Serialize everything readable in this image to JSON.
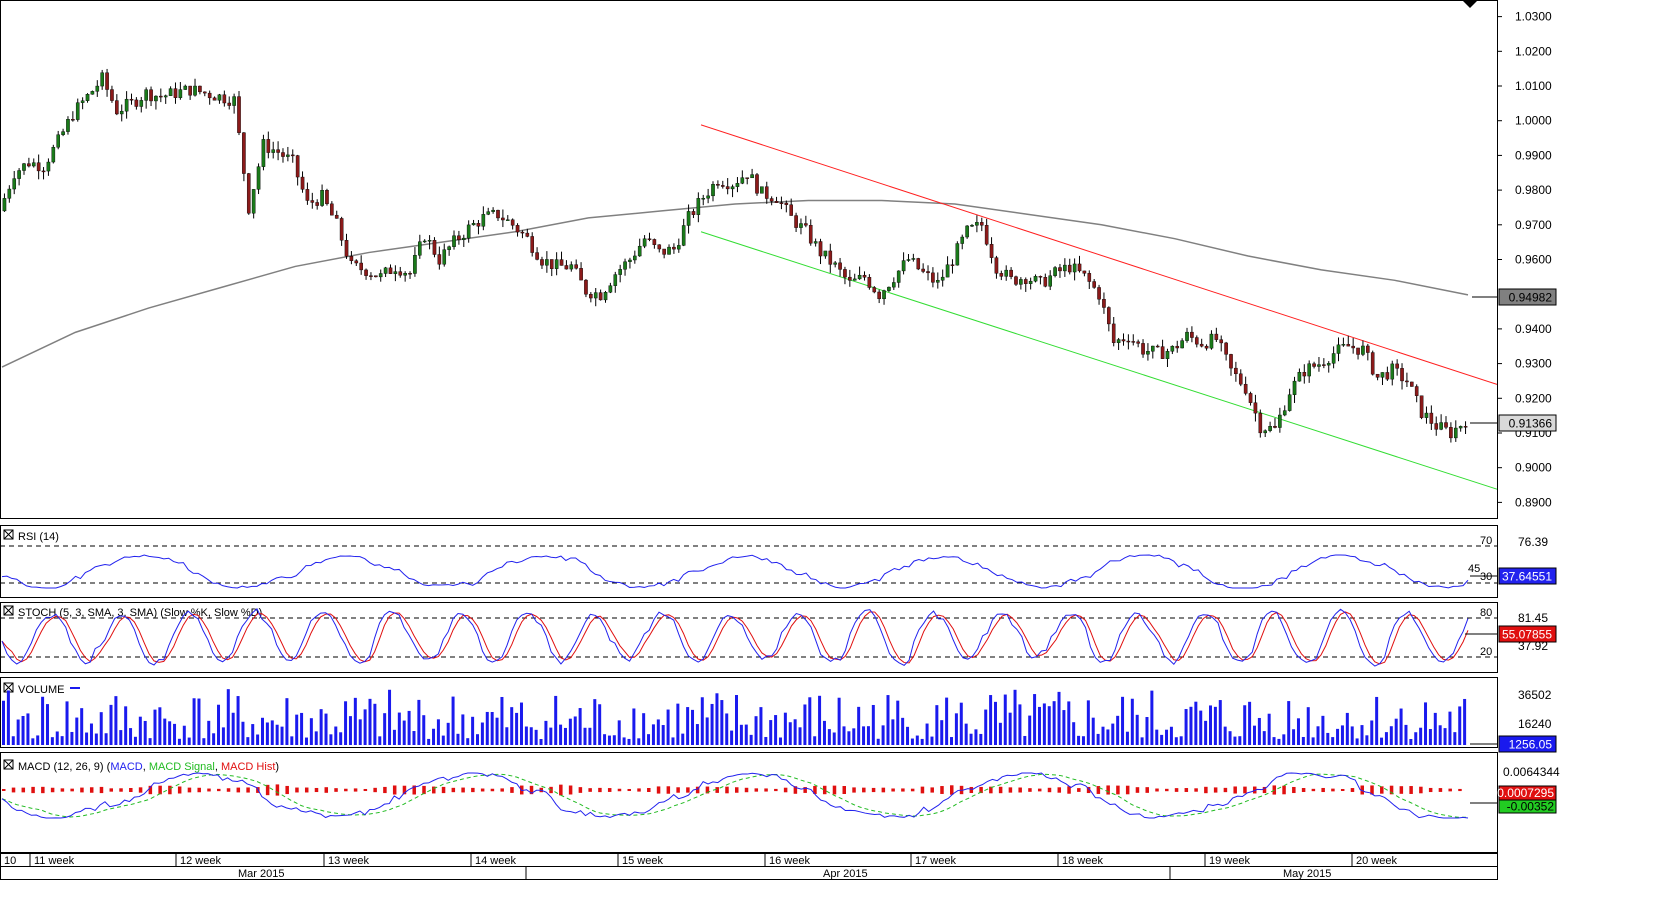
{
  "chart_data": [
    {
      "type": "candlestick",
      "panel": "price",
      "y_ticks": [
        "1.0300",
        "1.0200",
        "1.0100",
        "1.0000",
        "0.9900",
        "0.9800",
        "0.9700",
        "0.9600",
        "0.9400",
        "0.9300",
        "0.9200",
        "0.9100",
        "0.9000",
        "0.8900"
      ],
      "ylim": [
        0.8855,
        1.0345
      ],
      "current_price_label": "0.91366",
      "current_price": 0.91366,
      "sma_label": "0.94982",
      "sma_value": 0.94982,
      "sma_points": [
        [
          0,
          0.929
        ],
        [
          0.05,
          0.939
        ],
        [
          0.1,
          0.946
        ],
        [
          0.15,
          0.952
        ],
        [
          0.2,
          0.958
        ],
        [
          0.25,
          0.962
        ],
        [
          0.3,
          0.965
        ],
        [
          0.35,
          0.968
        ],
        [
          0.4,
          0.972
        ],
        [
          0.45,
          0.974
        ],
        [
          0.5,
          0.976
        ],
        [
          0.55,
          0.977
        ],
        [
          0.6,
          0.977
        ],
        [
          0.65,
          0.976
        ],
        [
          0.7,
          0.973
        ],
        [
          0.75,
          0.97
        ],
        [
          0.8,
          0.966
        ],
        [
          0.85,
          0.961
        ],
        [
          0.9,
          0.957
        ],
        [
          0.95,
          0.954
        ],
        [
          1.0,
          0.9498
        ]
      ],
      "resistance_line": [
        [
          0.47,
          0.9988
        ],
        [
          1.0,
          0.924
        ]
      ],
      "support_line": [
        [
          0.47,
          0.968
        ],
        [
          1.0,
          0.8938
        ]
      ],
      "price_path": [
        [
          0,
          0.974
        ],
        [
          0.01,
          0.985
        ],
        [
          0.02,
          0.988
        ],
        [
          0.03,
          0.987
        ],
        [
          0.04,
          0.994
        ],
        [
          0.05,
          1.002
        ],
        [
          0.06,
          1.007
        ],
        [
          0.07,
          1.012
        ],
        [
          0.08,
          1.003
        ],
        [
          0.09,
          1.005
        ],
        [
          0.1,
          1.008
        ],
        [
          0.11,
          1.007
        ],
        [
          0.12,
          1.008
        ],
        [
          0.13,
          1.009
        ],
        [
          0.14,
          1.008
        ],
        [
          0.15,
          1.007
        ],
        [
          0.16,
          1.006
        ],
        [
          0.17,
          0.975
        ],
        [
          0.18,
          0.993
        ],
        [
          0.19,
          0.991
        ],
        [
          0.2,
          0.988
        ],
        [
          0.21,
          0.976
        ],
        [
          0.22,
          0.978
        ],
        [
          0.23,
          0.97
        ],
        [
          0.24,
          0.958
        ],
        [
          0.25,
          0.957
        ],
        [
          0.26,
          0.955
        ],
        [
          0.27,
          0.958
        ],
        [
          0.28,
          0.956
        ],
        [
          0.29,
          0.967
        ],
        [
          0.3,
          0.96
        ],
        [
          0.31,
          0.965
        ],
        [
          0.32,
          0.969
        ],
        [
          0.33,
          0.972
        ],
        [
          0.34,
          0.973
        ],
        [
          0.35,
          0.97
        ],
        [
          0.36,
          0.966
        ],
        [
          0.37,
          0.96
        ],
        [
          0.38,
          0.958
        ],
        [
          0.39,
          0.958
        ],
        [
          0.4,
          0.951
        ],
        [
          0.41,
          0.95
        ],
        [
          0.42,
          0.956
        ],
        [
          0.43,
          0.96
        ],
        [
          0.44,
          0.966
        ],
        [
          0.45,
          0.962
        ],
        [
          0.46,
          0.963
        ],
        [
          0.47,
          0.972
        ],
        [
          0.48,
          0.978
        ],
        [
          0.49,
          0.983
        ],
        [
          0.5,
          0.982
        ],
        [
          0.51,
          0.985
        ],
        [
          0.52,
          0.979
        ],
        [
          0.53,
          0.978
        ],
        [
          0.54,
          0.972
        ],
        [
          0.55,
          0.968
        ],
        [
          0.56,
          0.962
        ],
        [
          0.57,
          0.958
        ],
        [
          0.58,
          0.953
        ],
        [
          0.59,
          0.955
        ],
        [
          0.6,
          0.95
        ],
        [
          0.61,
          0.955
        ],
        [
          0.62,
          0.96
        ],
        [
          0.63,
          0.956
        ],
        [
          0.64,
          0.953
        ],
        [
          0.65,
          0.96
        ],
        [
          0.66,
          0.968
        ],
        [
          0.67,
          0.97
        ],
        [
          0.68,
          0.958
        ],
        [
          0.69,
          0.954
        ],
        [
          0.7,
          0.955
        ],
        [
          0.71,
          0.953
        ],
        [
          0.72,
          0.956
        ],
        [
          0.73,
          0.958
        ],
        [
          0.74,
          0.955
        ],
        [
          0.75,
          0.95
        ],
        [
          0.76,
          0.936
        ],
        [
          0.77,
          0.938
        ],
        [
          0.78,
          0.934
        ],
        [
          0.79,
          0.933
        ],
        [
          0.8,
          0.934
        ],
        [
          0.81,
          0.938
        ],
        [
          0.82,
          0.936
        ],
        [
          0.83,
          0.937
        ],
        [
          0.84,
          0.928
        ],
        [
          0.85,
          0.923
        ],
        [
          0.86,
          0.912
        ],
        [
          0.87,
          0.911
        ],
        [
          0.88,
          0.922
        ],
        [
          0.89,
          0.928
        ],
        [
          0.9,
          0.93
        ],
        [
          0.91,
          0.933
        ],
        [
          0.92,
          0.935
        ],
        [
          0.93,
          0.934
        ],
        [
          0.94,
          0.926
        ],
        [
          0.95,
          0.928
        ],
        [
          0.96,
          0.925
        ],
        [
          0.97,
          0.916
        ],
        [
          0.98,
          0.912
        ],
        [
          0.99,
          0.91
        ],
        [
          1.0,
          0.9137
        ]
      ],
      "x_week_labels": [
        "10",
        "11 week",
        "12 week",
        "13 week",
        "14 week",
        "15 week",
        "16 week",
        "17 week",
        "18 week",
        "19 week",
        "20 week"
      ],
      "x_month_labels": [
        "Mar 2015",
        "Apr 2015",
        "May 2015"
      ]
    },
    {
      "type": "line",
      "panel": "rsi",
      "legend": "RSI (14)",
      "levels": [
        "70",
        "30"
      ],
      "scale_labels": [
        "76.39"
      ],
      "partial_label": "45",
      "current_label": "37.64551",
      "current_value": 37.64551,
      "colors": {
        "line": "#2222ee"
      }
    },
    {
      "type": "line",
      "panel": "stochastic",
      "legend": "STOCH (5, 3, SMA, 3, SMA) (Slow %K, Slow %D)",
      "levels": [
        "80",
        "20"
      ],
      "scale_labels": [
        "81.45",
        "37.92"
      ],
      "current_label": "55.07855",
      "current_value": 55.07855,
      "colors": {
        "k": "#2222ee",
        "d": "#e01010"
      }
    },
    {
      "type": "bar",
      "panel": "volume",
      "legend": "VOLUME",
      "scale_labels": [
        "36502",
        "16240"
      ],
      "current_label": "1256.05",
      "current_value": 1256.05,
      "colors": {
        "bar": "#1a1aee"
      }
    },
    {
      "type": "line",
      "panel": "macd",
      "legend_parts": [
        "MACD (12, 26, 9) (",
        "MACD",
        ", ",
        "MACD Signal",
        ", ",
        "MACD Hist",
        ")"
      ],
      "scale_labels": [
        "0.0064344"
      ],
      "current_hist_label": "-0.0007295",
      "current_macd_label": "-0.00352",
      "colors": {
        "macd": "#2222ee",
        "signal": "#22bb22",
        "hist": "#e01010"
      }
    }
  ],
  "colors": {
    "up": "#1a7a1a",
    "down": "#8b1a1a",
    "sma": "#808080",
    "resistance": "#ff2020",
    "support": "#33dd33",
    "grid": "#000000"
  }
}
